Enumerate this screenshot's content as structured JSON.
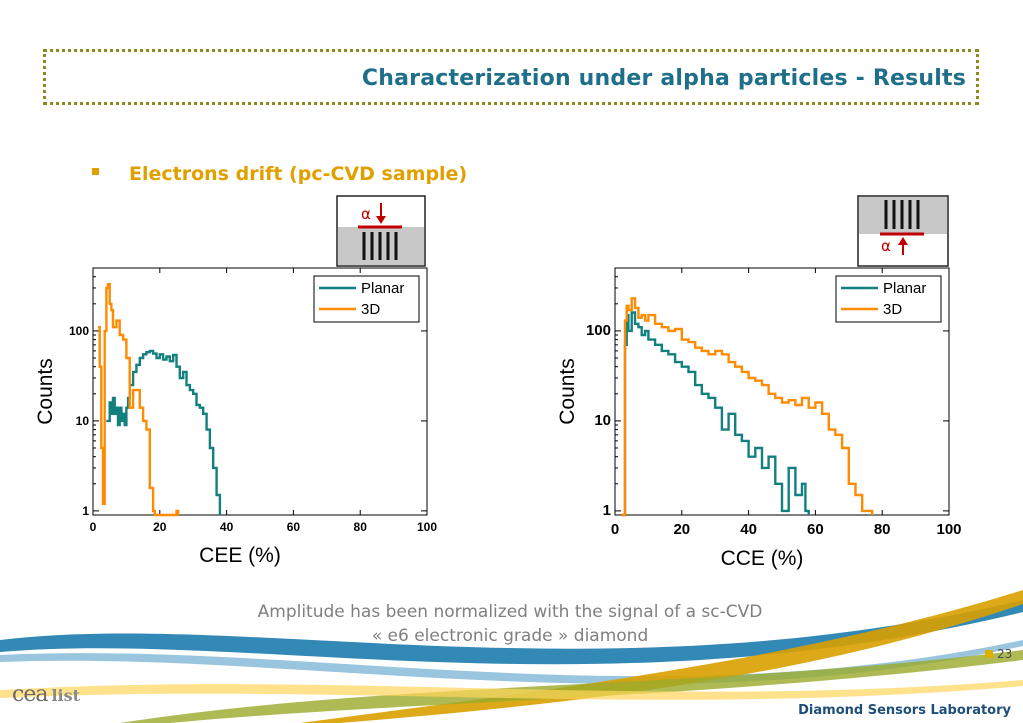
{
  "header": {
    "title": "Characterization under alpha particles - Results"
  },
  "bullet": {
    "text": "Electrons drift (pc-CVD sample)"
  },
  "caption": {
    "line1": "Amplitude has been normalized with the signal  of a sc-CVD",
    "line2": "« e6 electronic grade » diamond"
  },
  "footer": {
    "page": "23",
    "lab": "Diamond Sensors Laboratory",
    "logo_cea": "cea",
    "logo_list": "list"
  },
  "colors": {
    "planar": "#138080",
    "three_d": "#ff8c00",
    "title": "#1f6f8b",
    "bullet": "#e0a000"
  },
  "inset_left": {
    "symbol": "α",
    "arrow": "down"
  },
  "inset_right": {
    "symbol": "α",
    "arrow": "up"
  },
  "chart_data": [
    {
      "type": "line",
      "xlabel": "CEE (%)",
      "ylabel": "Counts",
      "xlim": [
        0,
        100
      ],
      "ylim": [
        0.9,
        500
      ],
      "yscale": "log",
      "xticks": [
        "0",
        "20",
        "40",
        "60",
        "80",
        "100"
      ],
      "yticks": [
        "1",
        "10",
        "100"
      ],
      "legend": "top-right",
      "series": [
        {
          "name": "Planar",
          "color": "#138080",
          "x": [
            4,
            5,
            5.5,
            6,
            6.5,
            7,
            7.5,
            8,
            8.5,
            9,
            9.5,
            10,
            10.5,
            11,
            12,
            13,
            14,
            15,
            16,
            17,
            18,
            19,
            20,
            21,
            22,
            23,
            24,
            25,
            26,
            27,
            28,
            29,
            30,
            31,
            32,
            33,
            34,
            35,
            36,
            37,
            38
          ],
          "y": [
            10,
            16,
            12,
            18,
            12,
            14,
            9,
            14,
            10,
            12,
            9,
            14,
            18,
            25,
            35,
            42,
            50,
            55,
            58,
            60,
            56,
            50,
            55,
            48,
            52,
            46,
            54,
            40,
            30,
            35,
            25,
            22,
            20,
            15,
            14,
            12,
            8,
            5,
            3,
            1.5,
            0
          ]
        },
        {
          "name": "3D",
          "color": "#ff8c00",
          "x": [
            1.5,
            2,
            2.5,
            3,
            3.5,
            4,
            4.5,
            5,
            5.5,
            6,
            7,
            8,
            9,
            10,
            11,
            12,
            13,
            14,
            15,
            16,
            17,
            18,
            18.5,
            25,
            25.5
          ],
          "y": [
            110,
            40,
            5,
            1.2,
            100,
            300,
            330,
            200,
            170,
            110,
            130,
            90,
            80,
            50,
            14,
            22,
            22,
            14,
            10,
            8,
            1.8,
            1,
            0,
            1,
            0
          ]
        }
      ]
    },
    {
      "type": "line",
      "xlabel": "CCE (%)",
      "ylabel": "Counts",
      "xlim": [
        0,
        100
      ],
      "ylim": [
        0.9,
        500
      ],
      "yscale": "log",
      "xticks": [
        "0",
        "20",
        "40",
        "60",
        "80",
        "100"
      ],
      "yticks": [
        "1",
        "10",
        "100"
      ],
      "legend": "top-right",
      "series": [
        {
          "name": "Planar",
          "color": "#138080",
          "x": [
            2,
            3,
            3.5,
            4,
            5,
            6,
            7,
            8,
            9,
            10,
            12,
            14,
            16,
            18,
            20,
            22,
            24,
            26,
            28,
            30,
            32,
            34,
            36,
            38,
            40,
            42,
            44,
            46,
            48,
            50,
            52,
            54,
            56,
            57,
            58
          ],
          "y": [
            0,
            70,
            150,
            100,
            160,
            120,
            110,
            90,
            100,
            80,
            70,
            60,
            55,
            45,
            40,
            35,
            25,
            20,
            18,
            14,
            8,
            12,
            7,
            6,
            4,
            5,
            3,
            4,
            2,
            1,
            3,
            1.5,
            2,
            1,
            0
          ]
        },
        {
          "name": "3D",
          "color": "#ff8c00",
          "x": [
            2,
            3,
            3.5,
            4,
            5,
            6,
            7,
            8,
            9,
            10,
            12,
            14,
            16,
            18,
            20,
            22,
            24,
            26,
            28,
            30,
            32,
            34,
            36,
            38,
            40,
            42,
            44,
            46,
            48,
            50,
            52,
            54,
            56,
            58,
            60,
            62,
            64,
            66,
            68,
            70,
            72,
            74,
            76,
            77
          ],
          "y": [
            0,
            130,
            190,
            170,
            230,
            180,
            140,
            150,
            130,
            150,
            120,
            110,
            100,
            105,
            80,
            75,
            65,
            60,
            55,
            60,
            55,
            45,
            40,
            35,
            30,
            28,
            25,
            20,
            18,
            16,
            17,
            15,
            18,
            14,
            16,
            12,
            8,
            7,
            5,
            2,
            1.5,
            1,
            1,
            0
          ]
        }
      ]
    }
  ]
}
